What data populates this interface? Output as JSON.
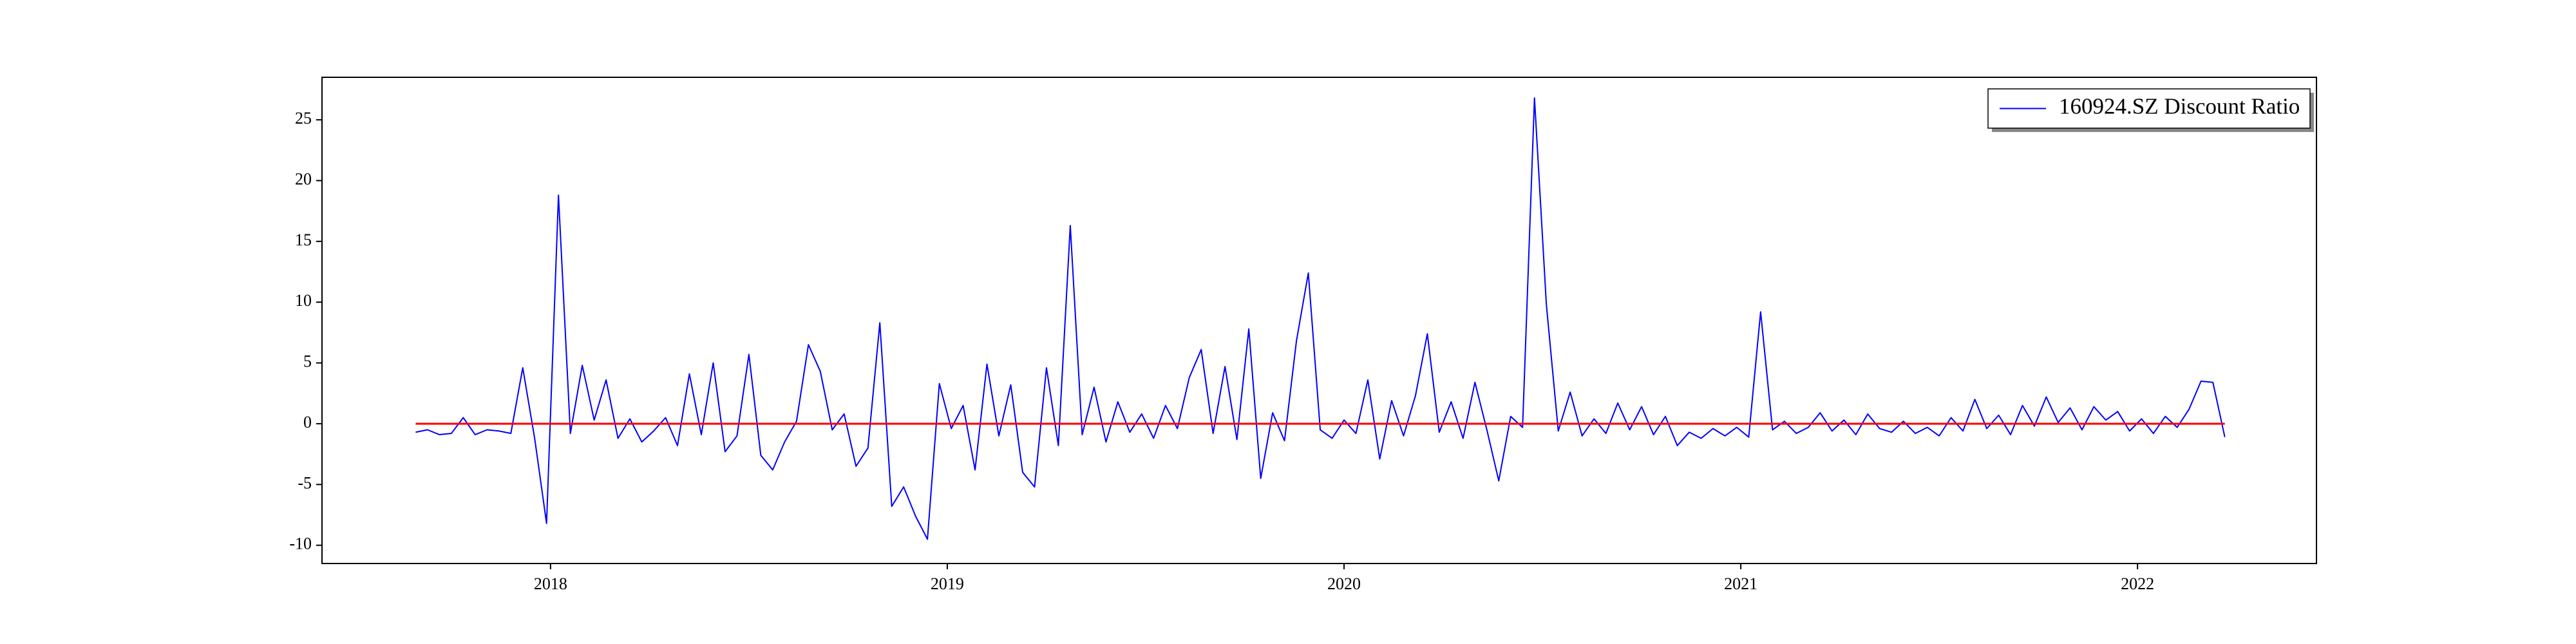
{
  "chart_data": {
    "type": "line",
    "x": [
      2017.66,
      2017.69,
      2017.72,
      2017.75,
      2017.78,
      2017.81,
      2017.84,
      2017.87,
      2017.9,
      2017.93,
      2017.96,
      2017.99,
      2018.02,
      2018.05,
      2018.08,
      2018.11,
      2018.14,
      2018.17,
      2018.2,
      2018.23,
      2018.26,
      2018.29,
      2018.32,
      2018.35,
      2018.38,
      2018.41,
      2018.44,
      2018.47,
      2018.5,
      2018.53,
      2018.56,
      2018.59,
      2018.62,
      2018.65,
      2018.68,
      2018.71,
      2018.74,
      2018.77,
      2018.8,
      2018.83,
      2018.86,
      2018.89,
      2018.92,
      2018.95,
      2018.98,
      2019.01,
      2019.04,
      2019.07,
      2019.1,
      2019.13,
      2019.16,
      2019.19,
      2019.22,
      2019.25,
      2019.28,
      2019.31,
      2019.34,
      2019.37,
      2019.4,
      2019.43,
      2019.46,
      2019.49,
      2019.52,
      2019.55,
      2019.58,
      2019.61,
      2019.64,
      2019.67,
      2019.7,
      2019.73,
      2019.76,
      2019.79,
      2019.82,
      2019.85,
      2019.88,
      2019.91,
      2019.94,
      2019.97,
      2020.0,
      2020.03,
      2020.06,
      2020.09,
      2020.12,
      2020.15,
      2020.18,
      2020.21,
      2020.24,
      2020.27,
      2020.3,
      2020.33,
      2020.36,
      2020.39,
      2020.42,
      2020.45,
      2020.48,
      2020.51,
      2020.54,
      2020.57,
      2020.6,
      2020.63,
      2020.66,
      2020.69,
      2020.72,
      2020.75,
      2020.78,
      2020.81,
      2020.84,
      2020.87,
      2020.9,
      2020.93,
      2020.96,
      2020.99,
      2021.02,
      2021.05,
      2021.08,
      2021.11,
      2021.14,
      2021.17,
      2021.2,
      2021.23,
      2021.26,
      2021.29,
      2021.32,
      2021.35,
      2021.38,
      2021.41,
      2021.44,
      2021.47,
      2021.5,
      2021.53,
      2021.56,
      2021.59,
      2021.62,
      2021.65,
      2021.68,
      2021.71,
      2021.74,
      2021.77,
      2021.8,
      2021.83,
      2021.86,
      2021.89,
      2021.92,
      2021.95,
      2021.98,
      2022.01,
      2022.04,
      2022.07,
      2022.1,
      2022.13,
      2022.16,
      2022.19,
      2022.22
    ],
    "series": [
      {
        "name": "160924.SZ Discount Ratio",
        "color": "#0000ff",
        "values": [
          -0.7,
          -0.5,
          -0.9,
          -0.8,
          0.5,
          -0.9,
          -0.5,
          -0.6,
          -0.8,
          4.6,
          -1.2,
          -8.2,
          18.8,
          -0.8,
          4.8,
          0.3,
          3.6,
          -1.2,
          0.4,
          -1.5,
          -0.6,
          0.5,
          -1.8,
          4.1,
          -0.9,
          5.0,
          -2.3,
          -1.0,
          5.7,
          -2.6,
          -3.8,
          -1.5,
          0.2,
          6.5,
          4.3,
          -0.5,
          0.8,
          -3.5,
          -2.0,
          8.3,
          -6.8,
          -5.2,
          -7.6,
          -9.5,
          3.3,
          -0.4,
          1.5,
          -3.8,
          4.9,
          -1.0,
          3.2,
          -4.0,
          -5.2,
          4.6,
          -1.8,
          16.3,
          -0.9,
          3.0,
          -1.5,
          1.8,
          -0.7,
          0.8,
          -1.2,
          1.5,
          -0.4,
          3.8,
          6.1,
          -0.8,
          4.7,
          -1.3,
          7.8,
          -4.5,
          0.9,
          -1.4,
          6.8,
          12.4,
          -0.5,
          -1.2,
          0.3,
          -0.8,
          3.6,
          -2.9,
          1.9,
          -1.0,
          2.3,
          7.4,
          -0.7,
          1.8,
          -1.2,
          3.4,
          -0.5,
          -4.7,
          0.6,
          -0.3,
          26.8,
          9.8,
          -0.6,
          2.6,
          -1.0,
          0.4,
          -0.8,
          1.7,
          -0.5,
          1.4,
          -0.9,
          0.6,
          -1.8,
          -0.7,
          -1.2,
          -0.4,
          -1.0,
          -0.3,
          -1.1,
          9.2,
          -0.5,
          0.2,
          -0.8,
          -0.3,
          0.9,
          -0.6,
          0.3,
          -0.9,
          0.8,
          -0.4,
          -0.7,
          0.2,
          -0.8,
          -0.3,
          -1.0,
          0.5,
          -0.6,
          2.0,
          -0.4,
          0.7,
          -0.9,
          1.5,
          -0.2,
          2.2,
          0.1,
          1.3,
          -0.5,
          1.4,
          0.3,
          1.0,
          -0.6,
          0.4,
          -0.8,
          0.6,
          -0.3,
          1.2,
          3.5,
          3.4,
          -1.1
        ]
      }
    ],
    "reference_line": {
      "y": 0,
      "color": "#ff0000"
    },
    "xlim": [
      2017.424,
      2022.451
    ],
    "xticks": [
      2018,
      2019,
      2020,
      2021,
      2022
    ],
    "ylim": [
      -11.5,
      28.5
    ],
    "yticks": [
      -10,
      -5,
      0,
      5,
      10,
      15,
      20,
      25
    ],
    "legend": "upper right"
  }
}
